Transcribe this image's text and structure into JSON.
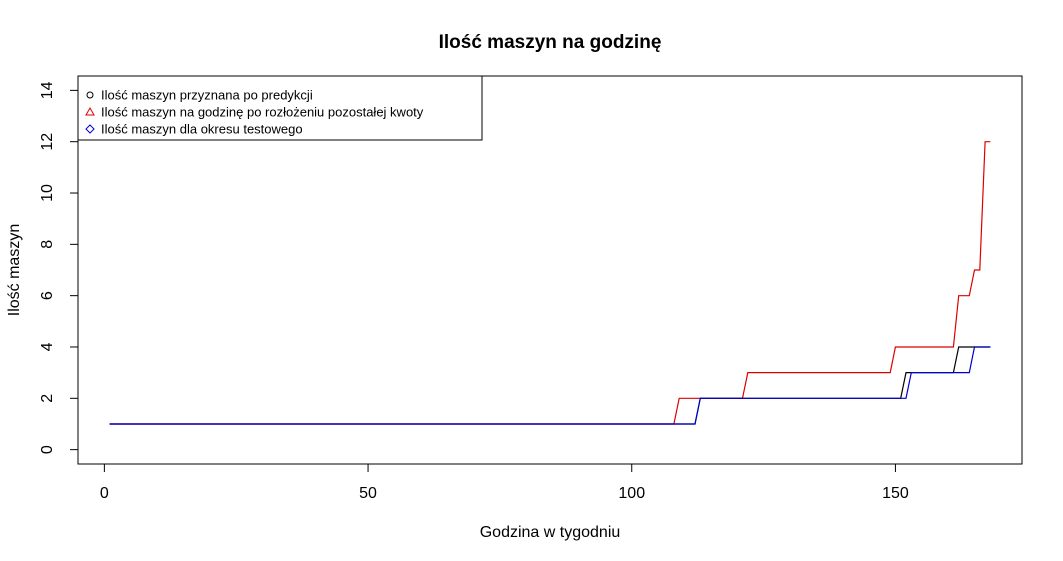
{
  "chart_data": {
    "type": "line",
    "title": "Ilość maszyn na godzinę",
    "xlabel": "Godzina w tygodniu",
    "ylabel": "Ilość maszyn",
    "xlim": [
      -5,
      174
    ],
    "ylim": [
      -0.56,
      14.56
    ],
    "xticks": [
      0,
      50,
      100,
      150
    ],
    "yticks": [
      0,
      2,
      4,
      6,
      8,
      10,
      12,
      14
    ],
    "grid": false,
    "legend_position": "top-left",
    "step": true,
    "series": [
      {
        "name": "Ilość maszyn przyznana po predykcji",
        "color": "#000000",
        "marker": "circle",
        "points": [
          [
            1,
            1
          ],
          [
            112,
            1
          ],
          [
            113,
            2
          ],
          [
            151,
            2
          ],
          [
            152,
            3
          ],
          [
            161,
            3
          ],
          [
            162,
            4
          ],
          [
            168,
            4
          ]
        ]
      },
      {
        "name": "Ilość maszyn na godzinę po rozłożeniu pozostałej kwoty",
        "color": "#dd0000",
        "marker": "triangle",
        "points": [
          [
            1,
            1
          ],
          [
            108,
            1
          ],
          [
            109,
            2
          ],
          [
            121,
            2
          ],
          [
            122,
            3
          ],
          [
            149,
            3
          ],
          [
            150,
            4
          ],
          [
            161,
            4
          ],
          [
            162,
            6
          ],
          [
            164,
            6
          ],
          [
            165,
            7
          ],
          [
            166,
            7
          ],
          [
            167,
            12
          ],
          [
            168,
            12
          ]
        ]
      },
      {
        "name": "Ilość maszyn dla okresu testowego",
        "color": "#0000cc",
        "marker": "diamond",
        "points": [
          [
            1,
            1
          ],
          [
            112,
            1
          ],
          [
            113,
            2
          ],
          [
            152,
            2
          ],
          [
            153,
            3
          ],
          [
            164,
            3
          ],
          [
            165,
            4
          ],
          [
            168,
            4
          ]
        ]
      }
    ]
  }
}
